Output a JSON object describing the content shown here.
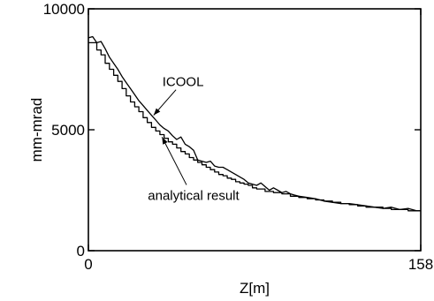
{
  "chart_data": {
    "type": "line",
    "xlabel": "Z[m]",
    "ylabel": "mm-mrad",
    "xlim": [
      0,
      158
    ],
    "ylim": [
      0,
      10000
    ],
    "x_ticks": [
      "0",
      "158"
    ],
    "y_ticks": [
      "0",
      "5000",
      "10000"
    ],
    "grid": false,
    "series": [
      {
        "name": "ICOOL",
        "style": "jagged",
        "x": [
          0,
          2,
          4,
          6,
          8,
          10,
          12,
          14,
          16,
          18,
          20,
          22,
          24,
          26,
          28,
          30,
          32,
          34,
          36,
          38,
          40,
          42,
          44,
          46,
          48,
          50,
          52,
          54,
          56,
          58,
          60,
          62,
          64,
          66,
          68,
          70,
          72,
          74,
          76,
          78,
          80,
          82,
          84,
          86,
          88,
          90,
          92,
          94,
          96,
          98,
          100,
          104,
          108,
          112,
          116,
          120,
          124,
          128,
          132,
          136,
          140,
          144,
          148,
          152,
          156,
          158
        ],
        "y": [
          8800,
          8850,
          8600,
          8650,
          8350,
          8000,
          7750,
          7500,
          7200,
          6950,
          6700,
          6450,
          6200,
          6000,
          5800,
          5600,
          5400,
          5200,
          5050,
          4950,
          4750,
          4600,
          4700,
          4400,
          4300,
          4150,
          3750,
          3700,
          3650,
          3700,
          3500,
          3450,
          3450,
          3350,
          3250,
          3150,
          3050,
          2950,
          2800,
          2750,
          2700,
          2800,
          2650,
          2500,
          2600,
          2500,
          2400,
          2450,
          2350,
          2300,
          2250,
          2200,
          2150,
          2050,
          2000,
          1950,
          1950,
          1900,
          1850,
          1800,
          1750,
          1800,
          1700,
          1750,
          1650,
          1650
        ]
      },
      {
        "name": "analytical result",
        "style": "stepped",
        "x": [
          0,
          2,
          4,
          6,
          8,
          10,
          12,
          14,
          16,
          18,
          20,
          22,
          24,
          26,
          28,
          30,
          32,
          34,
          36,
          38,
          40,
          42,
          44,
          46,
          48,
          50,
          52,
          54,
          56,
          58,
          60,
          62,
          64,
          66,
          68,
          70,
          72,
          74,
          76,
          78,
          80,
          84,
          88,
          92,
          96,
          100,
          104,
          108,
          112,
          116,
          120,
          124,
          128,
          132,
          136,
          140,
          144,
          148,
          152,
          156,
          158
        ],
        "y": [
          8600,
          8600,
          8300,
          8100,
          7750,
          7500,
          7250,
          7000,
          6700,
          6400,
          6150,
          5950,
          5750,
          5500,
          5300,
          5100,
          4950,
          4800,
          4650,
          4500,
          4400,
          4250,
          4100,
          4000,
          3850,
          3750,
          3650,
          3550,
          3450,
          3350,
          3250,
          3150,
          3100,
          3000,
          2950,
          2850,
          2800,
          2750,
          2700,
          2600,
          2550,
          2450,
          2400,
          2350,
          2250,
          2200,
          2150,
          2100,
          2050,
          2000,
          1950,
          1900,
          1850,
          1800,
          1800,
          1750,
          1700,
          1700,
          1650,
          1650,
          1650
        ]
      }
    ],
    "annotations": [
      {
        "text": "ICOOL",
        "points_to_series": "ICOOL",
        "at_x": 31,
        "at_y": 5600,
        "text_x": 45,
        "text_y": 6800
      },
      {
        "text": "analytical result",
        "points_to_series": "analytical result",
        "at_x": 35,
        "at_y": 4700,
        "text_x": 50,
        "text_y": 2100
      }
    ]
  }
}
